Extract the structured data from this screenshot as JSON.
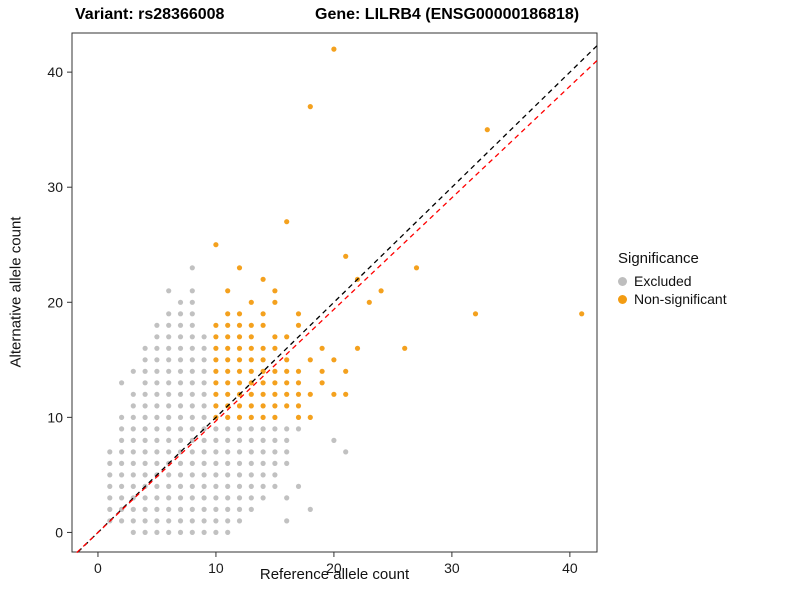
{
  "titles": {
    "variant": "Variant: rs28366008",
    "gene": "Gene: LILRB4 (ENSG00000186818)"
  },
  "chart_data": {
    "type": "scatter",
    "xlabel": "Reference allele count",
    "ylabel": "Alternative allele count",
    "xlim": [
      -2.2,
      42.3
    ],
    "ylim": [
      -1.7,
      43.4
    ],
    "xticks": [
      0,
      10,
      20,
      30,
      40
    ],
    "yticks": [
      0,
      10,
      20,
      30,
      40
    ],
    "grid": false,
    "panel_border_color": "#333333",
    "tick_color": "#333333",
    "tick_label_color": "#1a1a1a",
    "point_radius": 2.6,
    "legend": {
      "title": "Significance",
      "position": "right",
      "entries": [
        {
          "label": "Excluded",
          "color": "#BEBEBE"
        },
        {
          "label": "Non-significant",
          "color": "#F39C12"
        }
      ]
    },
    "lines": [
      {
        "name": "identity-line",
        "color": "#000000",
        "dash": true,
        "x1": -1.7,
        "y1": -1.7,
        "x2": 42.3,
        "y2": 42.3
      },
      {
        "name": "fit-line",
        "color": "#FF0000",
        "dash": true,
        "x1": -1.8,
        "y1": -1.75,
        "x2": 42.3,
        "y2": 41.0
      }
    ],
    "series": [
      {
        "name": "Excluded",
        "color": "#BEBEBE",
        "rows": [
          {
            "y": 0,
            "x": [
              3,
              4,
              5,
              6,
              7,
              8,
              9,
              10,
              11
            ]
          },
          {
            "y": 1,
            "x": [
              1,
              2,
              3,
              4,
              5,
              6,
              7,
              8,
              9,
              10,
              11,
              12,
              16
            ]
          },
          {
            "y": 2,
            "x": [
              1,
              2,
              3,
              4,
              5,
              6,
              7,
              8,
              9,
              10,
              11,
              12,
              13,
              18
            ]
          },
          {
            "y": 3,
            "x": [
              1,
              2,
              3,
              4,
              5,
              6,
              7,
              8,
              9,
              10,
              11,
              12,
              13,
              14,
              16
            ]
          },
          {
            "y": 4,
            "x": [
              1,
              2,
              3,
              4,
              5,
              6,
              7,
              8,
              9,
              10,
              11,
              12,
              13,
              14,
              15,
              17
            ]
          },
          {
            "y": 5,
            "x": [
              1,
              2,
              3,
              4,
              5,
              6,
              7,
              8,
              9,
              10,
              11,
              12,
              13,
              14,
              15
            ]
          },
          {
            "y": 6,
            "x": [
              1,
              2,
              3,
              4,
              5,
              6,
              7,
              8,
              9,
              10,
              11,
              12,
              13,
              14,
              15,
              16
            ]
          },
          {
            "y": 7,
            "x": [
              1,
              2,
              3,
              4,
              5,
              6,
              7,
              8,
              9,
              10,
              11,
              12,
              13,
              14,
              15,
              16,
              21
            ]
          },
          {
            "y": 8,
            "x": [
              2,
              3,
              4,
              5,
              6,
              7,
              8,
              9,
              10,
              11,
              12,
              13,
              14,
              15,
              16,
              20
            ]
          },
          {
            "y": 9,
            "x": [
              2,
              3,
              4,
              5,
              6,
              7,
              8,
              9,
              10,
              11,
              12,
              13,
              14,
              15,
              16,
              17
            ]
          },
          {
            "y": 10,
            "x": [
              2,
              3,
              4,
              5,
              6,
              7,
              8,
              9
            ]
          },
          {
            "y": 11,
            "x": [
              3,
              4,
              5,
              6,
              7,
              8,
              9
            ]
          },
          {
            "y": 12,
            "x": [
              3,
              4,
              5,
              6,
              7,
              8,
              9
            ]
          },
          {
            "y": 13,
            "x": [
              2,
              4,
              5,
              6,
              7,
              8,
              9
            ]
          },
          {
            "y": 14,
            "x": [
              3,
              4,
              5,
              6,
              7,
              8,
              9
            ]
          },
          {
            "y": 15,
            "x": [
              4,
              5,
              6,
              7,
              8,
              9
            ]
          },
          {
            "y": 16,
            "x": [
              4,
              5,
              6,
              7,
              8,
              9
            ]
          },
          {
            "y": 17,
            "x": [
              5,
              6,
              7,
              8,
              9
            ]
          },
          {
            "y": 18,
            "x": [
              5,
              6,
              7,
              8
            ]
          },
          {
            "y": 19,
            "x": [
              6,
              7,
              8
            ]
          },
          {
            "y": 20,
            "x": [
              7,
              8
            ]
          },
          {
            "y": 21,
            "x": [
              6,
              8
            ]
          },
          {
            "y": 23,
            "x": [
              8
            ]
          }
        ]
      },
      {
        "name": "Non-significant",
        "color": "#F39C12",
        "rows": [
          {
            "y": 10,
            "x": [
              10,
              11,
              12,
              13,
              14,
              15,
              17,
              18
            ]
          },
          {
            "y": 11,
            "x": [
              10,
              11,
              12,
              13,
              14,
              15,
              16,
              17
            ]
          },
          {
            "y": 12,
            "x": [
              10,
              11,
              12,
              13,
              14,
              15,
              16,
              17,
              18,
              20,
              21
            ]
          },
          {
            "y": 13,
            "x": [
              10,
              11,
              12,
              13,
              14,
              15,
              16,
              17,
              19
            ]
          },
          {
            "y": 14,
            "x": [
              10,
              11,
              12,
              13,
              14,
              15,
              16,
              17,
              19,
              21
            ]
          },
          {
            "y": 15,
            "x": [
              10,
              11,
              12,
              13,
              14,
              16,
              18,
              20
            ]
          },
          {
            "y": 16,
            "x": [
              10,
              11,
              12,
              13,
              14,
              15,
              19,
              22,
              26
            ]
          },
          {
            "y": 17,
            "x": [
              10,
              11,
              12,
              13,
              15,
              16
            ]
          },
          {
            "y": 18,
            "x": [
              10,
              11,
              12,
              13,
              14,
              17
            ]
          },
          {
            "y": 19,
            "x": [
              11,
              12,
              14,
              17,
              32,
              41
            ]
          },
          {
            "y": 20,
            "x": [
              13,
              15,
              23
            ]
          },
          {
            "y": 21,
            "x": [
              11,
              15,
              24
            ]
          },
          {
            "y": 22,
            "x": [
              14,
              22
            ]
          },
          {
            "y": 23,
            "x": [
              12,
              27
            ]
          },
          {
            "y": 24,
            "x": [
              21
            ]
          },
          {
            "y": 25,
            "x": [
              10
            ]
          },
          {
            "y": 27,
            "x": [
              16
            ]
          },
          {
            "y": 35,
            "x": [
              33
            ]
          },
          {
            "y": 37,
            "x": [
              18
            ]
          },
          {
            "y": 42,
            "x": [
              20
            ]
          }
        ]
      }
    ]
  }
}
